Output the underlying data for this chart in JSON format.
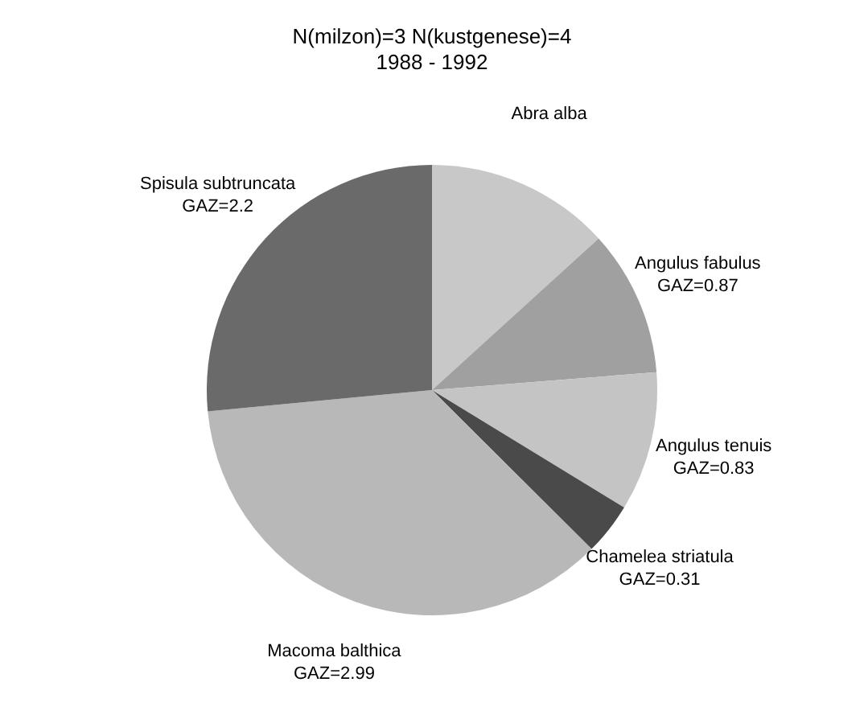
{
  "chart_data": {
    "type": "pie",
    "title": "N(milzon)=3  N(kustgenese)=4",
    "subtitle": "1988 - 1992",
    "categories": [
      "Abra alba",
      "Angulus fabulus",
      "Angulus tenuis",
      "Chamelea striatula",
      "Macoma balthica",
      "Spisula subtruncata"
    ],
    "values": [
      1.1,
      0.87,
      0.83,
      0.31,
      2.99,
      2.2
    ],
    "value_labels": [
      null,
      "GAZ=0.87",
      "GAZ=0.83",
      "GAZ=0.31",
      "GAZ=2.99",
      "GAZ=2.2"
    ],
    "colors": [
      "#c8c8c8",
      "#a0a0a0",
      "#c4c4c4",
      "#4a4a4a",
      "#b8b8b8",
      "#6a6a6a"
    ]
  }
}
